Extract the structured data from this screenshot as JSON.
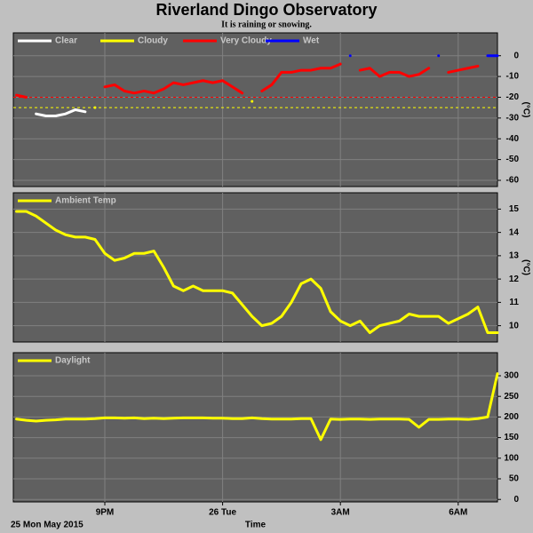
{
  "header": {
    "title": "Riverland Dingo Observatory",
    "subtitle": "It is raining or snowing."
  },
  "chart_data": [
    {
      "type": "line",
      "ylabel": "(°C)",
      "x": [
        18.75,
        19.0,
        19.25,
        19.5,
        19.75,
        20.0,
        20.25,
        20.5,
        20.75,
        21.0,
        21.25,
        21.5,
        21.75,
        22.0,
        22.25,
        22.5,
        22.75,
        23.0,
        23.25,
        23.5,
        23.75,
        24.0,
        24.25,
        24.5,
        24.75,
        25.0,
        25.25,
        25.5,
        25.75,
        26.0,
        26.25,
        26.5,
        26.75,
        27.0,
        27.25,
        27.5,
        27.75,
        28.0,
        28.25,
        28.5,
        28.75,
        29.0,
        29.25,
        29.5,
        29.75,
        30.0,
        30.25,
        30.5,
        30.75,
        31.0
      ],
      "series": [
        {
          "name": "Clear",
          "color": "#ffffff",
          "values": [
            null,
            null,
            -28,
            -29,
            -29,
            -28,
            -26,
            -27,
            null,
            null,
            null,
            null,
            null,
            null,
            null,
            null,
            null,
            null,
            null,
            null,
            null,
            null,
            null,
            null,
            null,
            null,
            null,
            null,
            null,
            null,
            null,
            null,
            null,
            null,
            null,
            null,
            null,
            null,
            null,
            null,
            null,
            null,
            null,
            null,
            null,
            null,
            null,
            null,
            null,
            null
          ]
        },
        {
          "name": "Cloudy",
          "color": "#ffff00",
          "values": [
            null,
            null,
            null,
            null,
            null,
            null,
            null,
            null,
            -25,
            null,
            null,
            null,
            null,
            null,
            null,
            null,
            null,
            null,
            null,
            null,
            null,
            null,
            null,
            null,
            -22,
            null,
            null,
            null,
            null,
            null,
            null,
            null,
            null,
            null,
            null,
            null,
            null,
            null,
            null,
            null,
            null,
            null,
            null,
            null,
            null,
            null,
            null,
            null,
            null,
            null
          ]
        },
        {
          "name": "Very Cloudy",
          "color": "#ff0000",
          "values": [
            -19,
            -20,
            null,
            null,
            null,
            null,
            null,
            null,
            null,
            -15,
            -14,
            -17,
            -18,
            -17,
            -18,
            -16,
            -13,
            -14,
            -13,
            -12,
            -13,
            -12,
            -15,
            -18,
            null,
            -17,
            -14,
            -8,
            -8,
            -7,
            -7,
            -6,
            -6,
            -4,
            null,
            -7,
            -6,
            -10,
            -8,
            -8,
            -10,
            -9,
            -6,
            null,
            -8,
            -7,
            -6,
            -5,
            null,
            null
          ]
        },
        {
          "name": "Wet",
          "color": "#0000ff",
          "values": [
            null,
            null,
            null,
            null,
            null,
            null,
            null,
            null,
            null,
            null,
            null,
            null,
            null,
            null,
            null,
            null,
            null,
            null,
            null,
            null,
            null,
            null,
            null,
            null,
            null,
            null,
            null,
            null,
            null,
            null,
            null,
            null,
            null,
            null,
            0,
            null,
            null,
            null,
            null,
            null,
            null,
            null,
            null,
            0,
            null,
            null,
            null,
            null,
            0,
            0
          ]
        }
      ],
      "hlines": [
        {
          "value": -20,
          "color": "#ff0000"
        },
        {
          "value": -25,
          "color": "#ffff00"
        }
      ],
      "xlim": [
        18.67,
        31.0
      ],
      "xticks": [
        21,
        24,
        27,
        30
      ],
      "ylim": [
        -63,
        11
      ],
      "yticks": [
        0,
        -10,
        -20,
        -30,
        -40,
        -50,
        -60
      ],
      "grid": true
    },
    {
      "type": "line",
      "ylabel": "(°C)",
      "x": [
        18.75,
        19.0,
        19.25,
        19.5,
        19.75,
        20.0,
        20.25,
        20.5,
        20.75,
        21.0,
        21.25,
        21.5,
        21.75,
        22.0,
        22.25,
        22.5,
        22.75,
        23.0,
        23.25,
        23.5,
        23.75,
        24.0,
        24.25,
        24.5,
        24.75,
        25.0,
        25.25,
        25.5,
        25.75,
        26.0,
        26.25,
        26.5,
        26.75,
        27.0,
        27.25,
        27.5,
        27.75,
        28.0,
        28.25,
        28.5,
        28.75,
        29.0,
        29.25,
        29.5,
        29.75,
        30.0,
        30.25,
        30.5,
        30.75,
        31.0
      ],
      "series": [
        {
          "name": "Ambient Temp",
          "color": "#ffff00",
          "values": [
            14.9,
            14.9,
            14.7,
            14.4,
            14.1,
            13.9,
            13.8,
            13.8,
            13.7,
            13.1,
            12.8,
            12.9,
            13.1,
            13.1,
            13.2,
            12.5,
            11.7,
            11.5,
            11.7,
            11.5,
            11.5,
            11.5,
            11.4,
            10.9,
            10.4,
            10.0,
            10.1,
            10.4,
            11.0,
            11.8,
            12.0,
            11.6,
            10.6,
            10.2,
            10.0,
            10.2,
            9.7,
            10.0,
            10.1,
            10.2,
            10.5,
            10.4,
            10.4,
            10.4,
            10.1,
            10.3,
            10.5,
            10.8,
            9.7,
            9.7
          ]
        }
      ],
      "xlim": [
        18.67,
        31.0
      ],
      "xticks": [
        21,
        24,
        27,
        30
      ],
      "ylim": [
        9.3,
        15.7
      ],
      "yticks": [
        15,
        14,
        13,
        12,
        11,
        10
      ],
      "grid": true
    },
    {
      "type": "line",
      "xlabel": "Time",
      "date_label": "25 Mon May 2015",
      "x": [
        18.75,
        19.0,
        19.25,
        19.5,
        19.75,
        20.0,
        20.25,
        20.5,
        20.75,
        21.0,
        21.25,
        21.5,
        21.75,
        22.0,
        22.25,
        22.5,
        22.75,
        23.0,
        23.25,
        23.5,
        23.75,
        24.0,
        24.25,
        24.5,
        24.75,
        25.0,
        25.25,
        25.5,
        25.75,
        26.0,
        26.25,
        26.5,
        26.75,
        27.0,
        27.25,
        27.5,
        27.75,
        28.0,
        28.25,
        28.5,
        28.75,
        29.0,
        29.25,
        29.5,
        29.75,
        30.0,
        30.25,
        30.5,
        30.75,
        31.0
      ],
      "series": [
        {
          "name": "Daylight",
          "color": "#ffff00",
          "values": [
            195,
            192,
            190,
            192,
            193,
            195,
            195,
            195,
            196,
            198,
            198,
            197,
            198,
            196,
            197,
            196,
            197,
            198,
            198,
            198,
            197,
            197,
            196,
            196,
            198,
            196,
            195,
            195,
            195,
            196,
            196,
            145,
            195,
            194,
            195,
            195,
            194,
            195,
            195,
            195,
            194,
            175,
            194,
            194,
            195,
            195,
            194,
            196,
            200,
            305
          ]
        }
      ],
      "xlim": [
        18.67,
        31.0
      ],
      "xticks": [
        {
          "value": 21,
          "label": "9PM"
        },
        {
          "value": 24,
          "label": "26 Tue"
        },
        {
          "value": 27,
          "label": "3AM"
        },
        {
          "value": 30,
          "label": "6AM"
        }
      ],
      "ylim": [
        -6,
        356
      ],
      "yticks": [
        300,
        250,
        200,
        150,
        100,
        50,
        0
      ],
      "grid": true
    }
  ]
}
